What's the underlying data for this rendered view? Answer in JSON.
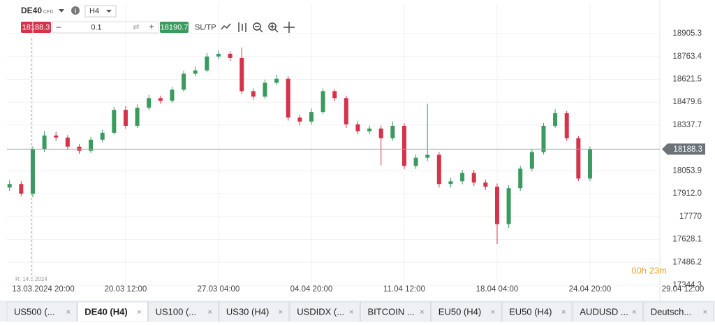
{
  "toolbar": {
    "symbol": "DE40",
    "symbol_type": "CFD",
    "timeframe": "H4",
    "sell_price": 18188.3,
    "volume": 0.1,
    "buy_price": 18190.7,
    "sl_tp": "SL/TP"
  },
  "chart_data": {
    "type": "candlestick",
    "up_color": "#3b9a5e",
    "down_color": "#d4344b",
    "grid": true,
    "categories": [
      null,
      null,
      "13.03.2024 20:00",
      null,
      null,
      null,
      null,
      null,
      null,
      null,
      "20.03 12:00",
      null,
      null,
      null,
      null,
      null,
      null,
      null,
      "27.03 04:00",
      null,
      null,
      null,
      null,
      null,
      null,
      null,
      "04.04 20:00",
      null,
      null,
      null,
      null,
      null,
      null,
      null,
      "11.04 12:00",
      null,
      null,
      null,
      null,
      null,
      null,
      null,
      "18.04 04:00",
      null,
      null,
      null,
      null,
      null,
      null,
      null,
      "24.04 20:00",
      null,
      null,
      null,
      null,
      null,
      null,
      null,
      "29.04 12:00"
    ],
    "open": [
      17950,
      17972,
      17912,
      18187,
      18273,
      18260,
      18204,
      18178,
      18247,
      18290,
      18432,
      18333,
      18445,
      18505,
      18488,
      18557,
      18656,
      18677,
      18763,
      18780,
      18754,
      18548,
      18514,
      18600,
      18625,
      18384,
      18359,
      18419,
      18548,
      18505,
      18342,
      18299,
      18316,
      18256,
      18333,
      18084,
      18135,
      18153,
      17972,
      17989,
      18041,
      17981,
      17955,
      17723,
      17946,
      18067,
      18170,
      18333,
      18411,
      18256,
      18006,
      null,
      null,
      null,
      null,
      null,
      null,
      null,
      null
    ],
    "high": [
      17995,
      17990,
      18205,
      18300,
      18295,
      18275,
      18220,
      18265,
      18310,
      18450,
      18455,
      18465,
      18525,
      18520,
      18575,
      18675,
      18700,
      18785,
      18800,
      18795,
      18819,
      18565,
      18620,
      18650,
      18640,
      18400,
      18440,
      18565,
      18560,
      18520,
      18360,
      18335,
      18335,
      18360,
      18350,
      18155,
      18470,
      18170,
      18010,
      18060,
      18060,
      18000,
      17975,
      17965,
      18085,
      18190,
      18350,
      18435,
      18425,
      18270,
      18205,
      null,
      null,
      null,
      null,
      null,
      null,
      null,
      null
    ],
    "low": [
      17930,
      17895,
      17890,
      18170,
      18240,
      18185,
      18160,
      18165,
      18230,
      18280,
      18315,
      18320,
      18430,
      18470,
      18475,
      18545,
      18640,
      18665,
      18745,
      18735,
      18530,
      18495,
      18500,
      18585,
      18365,
      18335,
      18340,
      18405,
      18485,
      18320,
      18280,
      18280,
      18088,
      18240,
      18065,
      18065,
      18115,
      17950,
      17950,
      17970,
      17960,
      17935,
      17600,
      17700,
      17930,
      18050,
      18155,
      18320,
      18240,
      17990,
      17990,
      null,
      null,
      null,
      null,
      null,
      null,
      null,
      null
    ],
    "close": [
      17972,
      17912,
      18187,
      18273,
      18260,
      18204,
      18178,
      18247,
      18290,
      18432,
      18333,
      18445,
      18505,
      18488,
      18557,
      18656,
      18677,
      18763,
      18780,
      18754,
      18548,
      18514,
      18600,
      18625,
      18384,
      18359,
      18419,
      18548,
      18505,
      18342,
      18299,
      18316,
      18256,
      18333,
      18084,
      18135,
      18153,
      17972,
      17989,
      18041,
      17981,
      17955,
      17723,
      17946,
      18067,
      18170,
      18333,
      18411,
      18256,
      18006,
      18188,
      null,
      null,
      null,
      null,
      null,
      null,
      null,
      null
    ],
    "ylim": [
      17344.3,
      18983.5
    ],
    "yticks": [
      17344.3,
      17486.2,
      17628.1,
      17770,
      {
        "value": 17912.0,
        "label": "17912.0"
      },
      18053.9,
      18337.7,
      18479.6,
      18621.5,
      18763.4,
      18905.3
    ],
    "current_price": 18188.3,
    "range_label": "R: 14.3.2024",
    "timer": "00h 23m"
  },
  "tabs": [
    "US500 (...",
    "DE40 (H4)",
    "US100 (...",
    "US30 (H4)",
    "USDIDX (...",
    "BITCOIN ...",
    "EU50 (H4)",
    "EU50 (H4)",
    "AUDUSD ...",
    "Deutsch..."
  ],
  "active_tab": 1
}
